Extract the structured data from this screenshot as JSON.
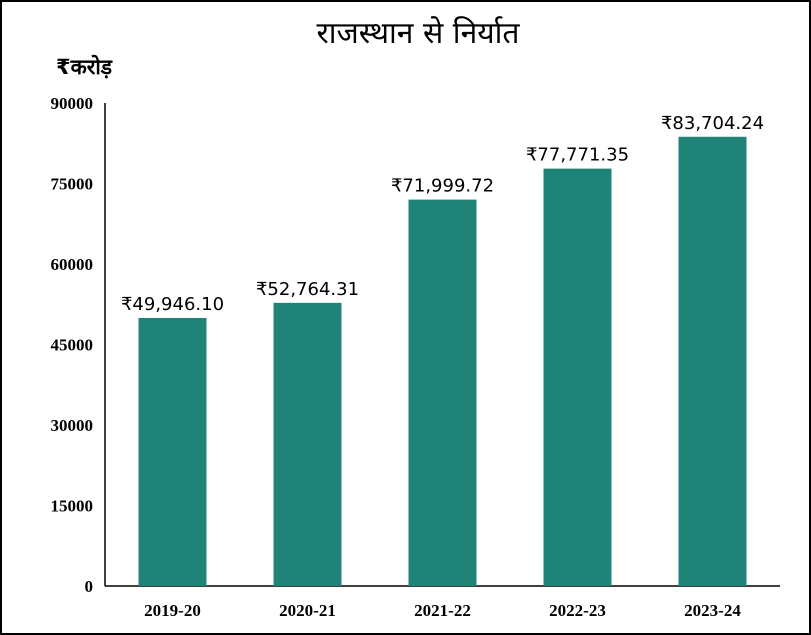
{
  "chart_data": {
    "type": "bar",
    "title": "राजस्थान से निर्यात",
    "unit_label": "₹करोड़",
    "categories": [
      "2019-20",
      "2020-21",
      "2021-22",
      "2022-23",
      "2023-24"
    ],
    "values": [
      49946.1,
      52764.31,
      71999.72,
      77771.35,
      83704.24
    ],
    "data_labels": [
      "₹49,946.10",
      "₹52,764.31",
      "₹71,999.72",
      "₹77,771.35",
      "₹83,704.24"
    ],
    "ylim": [
      0,
      90000
    ],
    "yticks": [
      "0",
      "15000",
      "30000",
      "45000",
      "60000",
      "75000",
      "90000"
    ],
    "grid": false,
    "bar_color": "#1f8378"
  }
}
